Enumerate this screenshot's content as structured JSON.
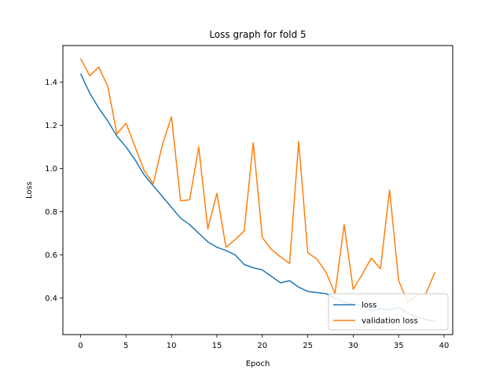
{
  "chart_data": {
    "type": "line",
    "title": "Loss graph for fold 5",
    "xlabel": "Epoch",
    "ylabel": "Loss",
    "xlim": [
      -1.95,
      40.95
    ],
    "ylim": [
      0.23,
      1.57
    ],
    "xticks": [
      0,
      5,
      10,
      15,
      20,
      25,
      30,
      35,
      40
    ],
    "yticks": [
      0.4,
      0.6,
      0.8,
      1.0,
      1.2,
      1.4
    ],
    "ytick_labels": [
      "0.4",
      "0.6",
      "0.8",
      "1.0",
      "1.2",
      "1.4"
    ],
    "grid": false,
    "legend_position": "lower-right",
    "x": [
      0,
      1,
      2,
      3,
      4,
      5,
      6,
      7,
      8,
      9,
      10,
      11,
      12,
      13,
      14,
      15,
      16,
      17,
      18,
      19,
      20,
      21,
      22,
      23,
      24,
      25,
      26,
      27,
      28,
      29,
      30,
      31,
      32,
      33,
      34,
      35,
      36,
      37,
      38,
      39
    ],
    "series": [
      {
        "name": "loss",
        "color": "#1f77b4",
        "values": [
          1.44,
          1.35,
          1.28,
          1.22,
          1.15,
          1.1,
          1.04,
          0.97,
          0.92,
          0.87,
          0.82,
          0.77,
          0.74,
          0.7,
          0.66,
          0.635,
          0.62,
          0.6,
          0.555,
          0.54,
          0.53,
          0.5,
          0.47,
          0.48,
          0.45,
          0.43,
          0.425,
          0.42,
          0.4,
          0.38,
          0.37,
          0.365,
          0.34,
          0.35,
          0.345,
          0.355,
          0.33,
          0.31,
          0.3,
          0.29
        ]
      },
      {
        "name": "validation loss",
        "color": "#ff7f0e",
        "values": [
          1.51,
          1.43,
          1.47,
          1.38,
          1.16,
          1.21,
          1.1,
          0.99,
          0.93,
          1.11,
          1.24,
          0.85,
          0.855,
          1.1,
          0.72,
          0.885,
          0.635,
          0.67,
          0.71,
          1.12,
          0.68,
          0.625,
          0.59,
          0.56,
          1.125,
          0.61,
          0.58,
          0.52,
          0.42,
          0.74,
          0.44,
          0.51,
          0.585,
          0.535,
          0.9,
          0.48,
          0.38,
          0.41,
          0.42,
          0.52
        ]
      }
    ]
  }
}
